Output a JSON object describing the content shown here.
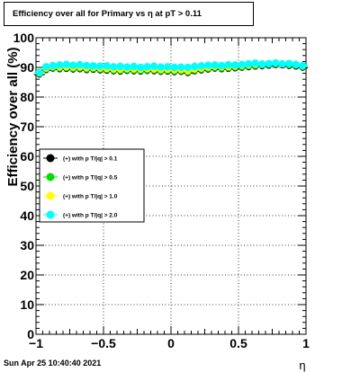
{
  "chart_data": {
    "type": "scatter",
    "title": "Efficiency over all for Primary vs   η at pT > 0.11",
    "xlabel": "η",
    "ylabel": "Efficiency over all (%)",
    "xlim": [
      -1,
      1
    ],
    "ylim": [
      0,
      100
    ],
    "x_ticks": [
      "−1",
      "−0.5",
      "0",
      "0.5",
      "1"
    ],
    "y_ticks": [
      "0",
      "10",
      "20",
      "30",
      "40",
      "50",
      "60",
      "70",
      "80",
      "90",
      "100"
    ],
    "grid": true,
    "legend_placement": "center-left",
    "x": [
      -0.975,
      -0.925,
      -0.875,
      -0.825,
      -0.775,
      -0.725,
      -0.675,
      -0.625,
      -0.575,
      -0.525,
      -0.475,
      -0.425,
      -0.375,
      -0.325,
      -0.275,
      -0.225,
      -0.175,
      -0.125,
      -0.075,
      -0.025,
      0.025,
      0.075,
      0.125,
      0.175,
      0.225,
      0.275,
      0.325,
      0.375,
      0.425,
      0.475,
      0.525,
      0.575,
      0.625,
      0.675,
      0.725,
      0.775,
      0.825,
      0.875,
      0.925,
      0.975
    ],
    "series": [
      {
        "name": "(+) with p T/|q| > 0.1",
        "color": "#000000",
        "values": [
          87.5,
          89.0,
          89.5,
          89.3,
          89.4,
          89.2,
          89.3,
          89.0,
          89.1,
          88.9,
          88.8,
          88.6,
          88.5,
          88.7,
          88.6,
          88.5,
          88.7,
          88.6,
          88.4,
          88.5,
          88.3,
          88.4,
          88.0,
          88.6,
          88.9,
          89.2,
          89.5,
          89.3,
          89.4,
          89.6,
          89.8,
          90.0,
          90.2,
          90.3,
          90.5,
          90.7,
          90.6,
          90.4,
          90.2,
          89.8
        ]
      },
      {
        "name": "(+) with p T/|q| > 0.5",
        "color": "#00dd00",
        "values": [
          87.8,
          89.3,
          89.8,
          89.6,
          89.7,
          89.5,
          89.6,
          89.3,
          89.4,
          89.2,
          89.1,
          88.9,
          88.8,
          89.0,
          88.9,
          88.8,
          89.0,
          88.9,
          88.7,
          88.8,
          88.6,
          88.7,
          88.3,
          88.9,
          89.2,
          89.5,
          89.8,
          89.6,
          89.7,
          89.9,
          90.1,
          90.3,
          90.5,
          90.6,
          90.8,
          91.0,
          90.9,
          90.7,
          90.5,
          90.1
        ]
      },
      {
        "name": "(+) with p T/|q| > 1.0",
        "color": "#ffff00",
        "values": [
          88.0,
          89.6,
          90.1,
          90.0,
          90.1,
          89.9,
          90.0,
          89.7,
          89.8,
          89.6,
          89.5,
          89.3,
          89.2,
          89.4,
          89.3,
          89.2,
          89.4,
          89.3,
          89.1,
          89.2,
          89.0,
          89.1,
          88.7,
          89.3,
          89.6,
          89.9,
          90.2,
          90.0,
          90.1,
          90.3,
          90.5,
          90.7,
          90.9,
          91.0,
          91.2,
          91.4,
          91.3,
          91.1,
          90.9,
          90.5
        ]
      },
      {
        "name": "(+) with p T/|q| > 2.0",
        "color": "#00ffff",
        "values": [
          88.3,
          90.2,
          90.6,
          90.8,
          91.0,
          90.7,
          90.9,
          90.6,
          90.5,
          90.4,
          90.5,
          90.2,
          90.3,
          90.1,
          90.3,
          90.0,
          90.2,
          90.4,
          90.1,
          90.2,
          90.0,
          90.1,
          90.0,
          90.3,
          90.5,
          90.7,
          90.8,
          90.6,
          90.9,
          90.8,
          91.0,
          91.2,
          91.4,
          91.1,
          91.3,
          91.5,
          91.2,
          91.3,
          91.0,
          90.6
        ]
      }
    ]
  },
  "datestamp": "Sun Apr 25 10:40:40 2021"
}
